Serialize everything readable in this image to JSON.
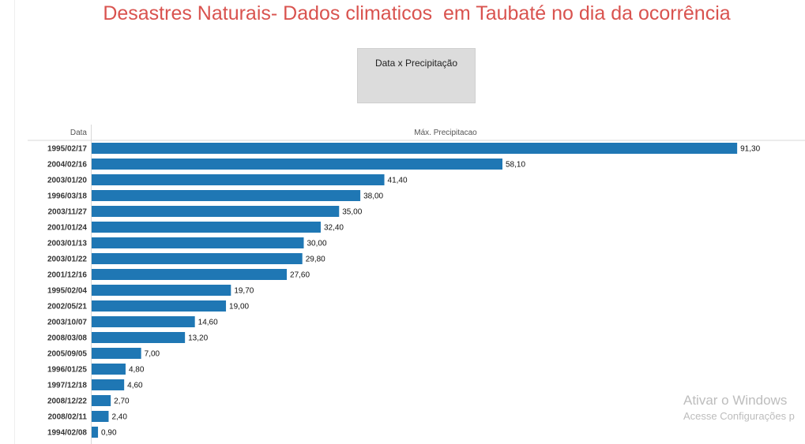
{
  "dashboard": {
    "title": "Desastres Naturais- Dados climaticos  em Taubaté no dia da ocorrência",
    "filter_button": "Data x Precipitação"
  },
  "chart_data": {
    "type": "bar",
    "orientation": "horizontal",
    "row_header": "Data",
    "column_header": "Máx. Precipitacao",
    "categories": [
      "1995/02/17",
      "2004/02/16",
      "2003/01/20",
      "1996/03/18",
      "2003/11/27",
      "2001/01/24",
      "2003/01/13",
      "2003/01/22",
      "2001/12/16",
      "1995/02/04",
      "2002/05/21",
      "2003/10/07",
      "2008/03/08",
      "2005/09/05",
      "1996/01/25",
      "1997/12/18",
      "2008/12/22",
      "2008/02/11",
      "1994/02/08"
    ],
    "values": [
      91.3,
      58.1,
      41.4,
      38.0,
      35.0,
      32.4,
      30.0,
      29.8,
      27.6,
      19.7,
      19.0,
      14.6,
      13.2,
      7.0,
      4.8,
      4.6,
      2.7,
      2.4,
      0.9
    ],
    "value_labels": [
      "91,30",
      "58,10",
      "41,40",
      "38,00",
      "35,00",
      "32,40",
      "30,00",
      "29,80",
      "27,60",
      "19,70",
      "19,00",
      "14,60",
      "13,20",
      "7,00",
      "4,80",
      "4,60",
      "2,70",
      "2,40",
      "0,90"
    ],
    "bar_color": "#1f77b4",
    "grid": false,
    "legend": "none"
  },
  "watermark": {
    "line1": "Ativar o Windows",
    "line2": "Acesse Configurações p"
  }
}
